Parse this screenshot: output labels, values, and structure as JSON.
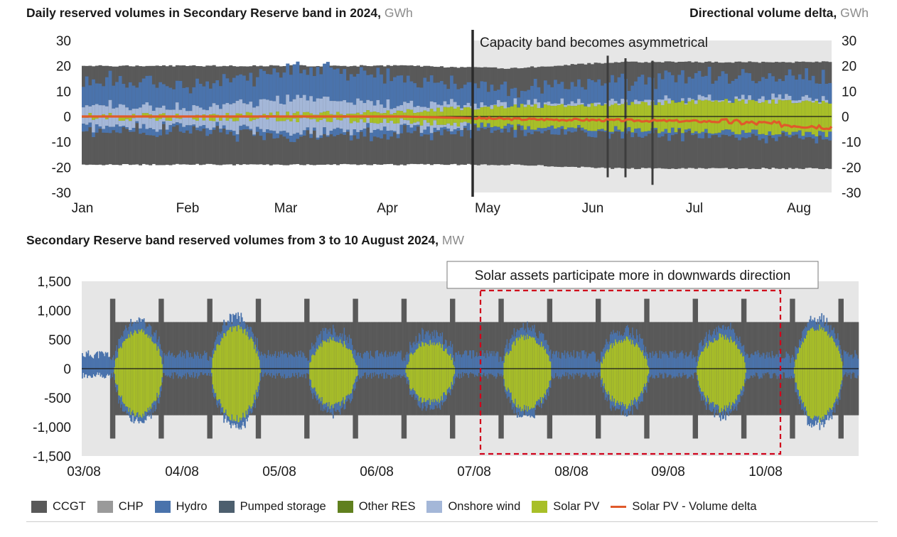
{
  "titles": {
    "top_left": "Daily reserved volumes in Secondary Reserve band in 2024,",
    "top_left_unit": "GWh",
    "top_right": "Directional volume delta,",
    "top_right_unit": "GWh",
    "bottom": "Secondary Reserve band reserved volumes from 3 to 10 August 2024,",
    "bottom_unit": "MW"
  },
  "colors": {
    "CCGT": "#595959",
    "CHP": "#9a9a9a",
    "Hydro": "#4a73ac",
    "Pumped storage": "#4d5f6e",
    "Other RES": "#60801e",
    "Onshore wind": "#a4b7d8",
    "Solar PV": "#a8bf28",
    "Solar PV - Volume delta": "#e05a2b",
    "Background shade": "#e6e6e6",
    "Dark base": "#3d3d3d"
  },
  "chart_data": [
    {
      "type": "area",
      "title": "Daily reserved volumes in Secondary Reserve band in 2024",
      "unit": "GWh",
      "ylim": [
        -30,
        30
      ],
      "yticks": [
        30,
        20,
        10,
        0,
        -10,
        -20,
        -30
      ],
      "y2_ylim": [
        -30,
        30
      ],
      "y2ticks": [
        30,
        20,
        10,
        0,
        -10,
        -20,
        -30
      ],
      "xticks": [
        "Jan",
        "Feb",
        "Mar",
        "Apr",
        "May",
        "Jun",
        "Jul",
        "Aug"
      ],
      "annotation": "Capacity band becomes asymmetrical",
      "annotation_month_index": 3.85,
      "series_envelope": {
        "months": [
          "Jan",
          "Feb",
          "Mar",
          "Apr",
          "May",
          "Jun",
          "Jul",
          "Aug"
        ],
        "total_up": [
          20,
          20,
          20,
          20,
          19,
          21.5,
          21.5,
          21.5
        ],
        "total_down": [
          -19,
          -19,
          -19,
          -19,
          -19,
          -20.5,
          -20.5,
          -20.5
        ],
        "hydro_up": [
          10,
          9,
          12,
          10,
          6,
          8,
          9,
          8
        ],
        "wind_up": [
          4,
          3,
          6,
          3,
          1,
          1,
          1,
          1
        ],
        "solar_up": [
          0.5,
          0.5,
          1,
          2,
          4,
          5,
          6,
          6
        ],
        "solar_down": [
          -0.5,
          -0.5,
          -1,
          -2,
          -4,
          -5,
          -6,
          -7
        ]
      },
      "volume_delta_line": {
        "name": "Solar PV - Volume delta",
        "months": [
          "Jan",
          "Feb",
          "Mar",
          "Apr",
          "May",
          "Jun",
          "Jul",
          "Aug"
        ],
        "values": [
          0,
          0,
          0,
          0,
          -1,
          -1.5,
          -2,
          -4
        ]
      }
    },
    {
      "type": "area",
      "title": "Secondary Reserve band reserved volumes from 3 to 10 August 2024",
      "unit": "MW",
      "ylim": [
        -1500,
        1500
      ],
      "yticks": [
        "1,500",
        "1,000",
        "500",
        "0",
        "-500",
        "-1,000",
        "-1,500"
      ],
      "ytick_values": [
        1500,
        1000,
        500,
        0,
        -500,
        -1000,
        -1500
      ],
      "xticks": [
        "03/08",
        "04/08",
        "05/08",
        "06/08",
        "07/08",
        "08/08",
        "09/08",
        "10/08"
      ],
      "base_band_mw": 800,
      "peak_band_mw": 1200,
      "annotation": "Solar assets participate more in downwards direction",
      "highlight_days": [
        "07/08",
        "10/08"
      ],
      "solar_peak_by_day": [
        650,
        700,
        500,
        450,
        550,
        500,
        550,
        700
      ]
    }
  ],
  "legend": [
    {
      "label": "CCGT",
      "key": "CCGT",
      "kind": "box"
    },
    {
      "label": "CHP",
      "key": "CHP",
      "kind": "box"
    },
    {
      "label": "Hydro",
      "key": "Hydro",
      "kind": "box"
    },
    {
      "label": "Pumped storage",
      "key": "Pumped storage",
      "kind": "box"
    },
    {
      "label": "Other RES",
      "key": "Other RES",
      "kind": "box"
    },
    {
      "label": "Onshore wind",
      "key": "Onshore wind",
      "kind": "box"
    },
    {
      "label": "Solar PV",
      "key": "Solar PV",
      "kind": "box"
    },
    {
      "label": "Solar PV - Volume delta",
      "key": "Solar PV - Volume delta",
      "kind": "line"
    }
  ]
}
